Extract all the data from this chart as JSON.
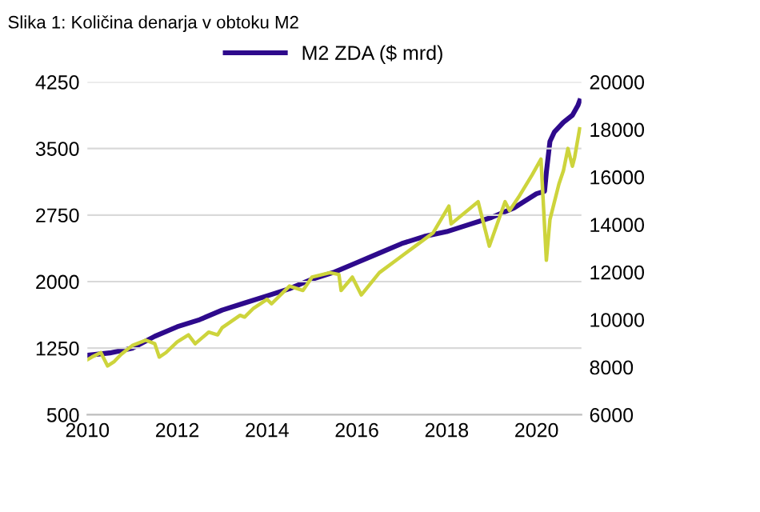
{
  "chart_data": {
    "type": "line",
    "title": "Slika 1: Količina denarja v obtoku M2",
    "xlim": [
      2010,
      2021
    ],
    "xticks": [
      2010,
      2012,
      2014,
      2016,
      2018,
      2020
    ],
    "ylim": [
      500,
      4250
    ],
    "yticks": [
      500,
      1250,
      2000,
      2750,
      3500,
      4250
    ],
    "y2lim": [
      6000,
      20000
    ],
    "y2ticks": [
      6000,
      8000,
      10000,
      12000,
      14000,
      16000,
      18000,
      20000
    ],
    "grid": "y",
    "legend": "top",
    "series": [
      {
        "color": "#cdd43c",
        "x": [
          2010.0,
          2010.1,
          2010.3,
          2010.45,
          2010.6,
          2010.75,
          2011.0,
          2011.3,
          2011.5,
          2011.6,
          2011.75,
          2012.0,
          2012.25,
          2012.4,
          2012.7,
          2012.9,
          2013.0,
          2013.4,
          2013.5,
          2013.7,
          2014.0,
          2014.1,
          2014.5,
          2014.8,
          2015.0,
          2015.4,
          2015.6,
          2015.65,
          2015.9,
          2016.1,
          2016.5,
          2016.9,
          2017.3,
          2017.7,
          2018.05,
          2018.1,
          2018.7,
          2018.95,
          2019.3,
          2019.4,
          2019.6,
          2019.9,
          2020.1,
          2020.22,
          2020.3,
          2020.5,
          2020.6,
          2020.7,
          2020.8,
          2020.85,
          2020.96
        ],
        "values": [
          1120,
          1150,
          1200,
          1050,
          1100,
          1180,
          1280,
          1340,
          1300,
          1150,
          1200,
          1320,
          1400,
          1300,
          1430,
          1400,
          1480,
          1620,
          1600,
          1700,
          1800,
          1750,
          1950,
          1900,
          2050,
          2100,
          2080,
          1900,
          2050,
          1850,
          2100,
          2250,
          2400,
          2550,
          2850,
          2650,
          2900,
          2400,
          2900,
          2800,
          2950,
          3200,
          3380,
          2240,
          2700,
          3100,
          3250,
          3500,
          3300,
          3400,
          3720
        ]
      },
      {
        "name": "M2 ZDA ($ mrd)",
        "color": "#2e0a8c",
        "axis": "y2",
        "x": [
          2010.0,
          2010.5,
          2011.0,
          2011.5,
          2012.0,
          2012.5,
          2013.0,
          2013.5,
          2014.0,
          2014.5,
          2015.0,
          2015.5,
          2016.0,
          2016.5,
          2017.0,
          2017.5,
          2018.0,
          2018.5,
          2019.0,
          2019.5,
          2020.0,
          2020.18,
          2020.22,
          2020.3,
          2020.4,
          2020.6,
          2020.8,
          2020.92,
          2020.96
        ],
        "values": [
          8500,
          8600,
          8800,
          9300,
          9700,
          10000,
          10400,
          10700,
          11000,
          11300,
          11700,
          12000,
          12400,
          12800,
          13200,
          13500,
          13700,
          14000,
          14300,
          14700,
          15300,
          15400,
          16200,
          17500,
          17900,
          18300,
          18600,
          19000,
          19200
        ]
      }
    ]
  }
}
